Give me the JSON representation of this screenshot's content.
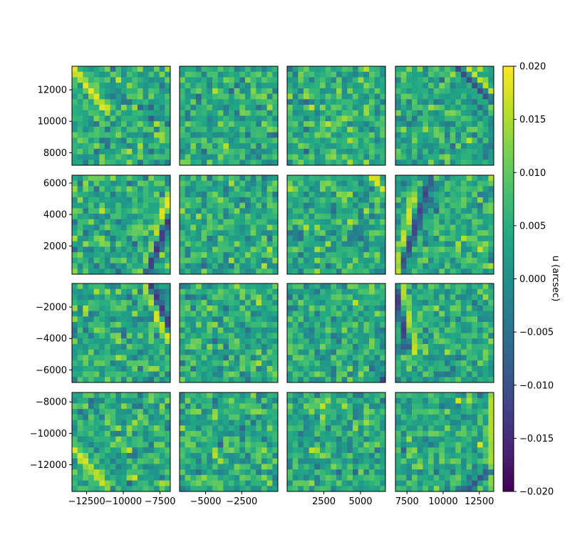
{
  "chart_data": {
    "type": "heatmap",
    "layout": "4x4 grid of panels sharing a colorbar",
    "colormap": "viridis",
    "value_range": [
      -0.02,
      0.02
    ],
    "colorbar": {
      "label": "u (arcsec)",
      "ticks": [
        "0.020",
        "0.015",
        "0.010",
        "0.005",
        "0.000",
        "−0.005",
        "−0.010",
        "−0.015",
        "−0.020"
      ],
      "tick_values": [
        0.02,
        0.015,
        0.01,
        0.005,
        0.0,
        -0.005,
        -0.01,
        -0.015,
        -0.02
      ]
    },
    "grid_resolution": 18,
    "column_xlim": [
      [
        -13500,
        -6800
      ],
      [
        -6800,
        0
      ],
      [
        0,
        6700
      ],
      [
        6700,
        13500
      ]
    ],
    "row_ylim": [
      [
        7200,
        13500
      ],
      [
        200,
        6500
      ],
      [
        -6800,
        -500
      ],
      [
        -13700,
        -7400
      ]
    ],
    "y_ticks": [
      {
        "labels": [
          "12000",
          "10000",
          "8000"
        ],
        "values": [
          12000,
          10000,
          8000
        ]
      },
      {
        "labels": [
          "6000",
          "4000",
          "2000"
        ],
        "values": [
          6000,
          4000,
          2000
        ]
      },
      {
        "labels": [
          "−2000",
          "−4000",
          "−6000"
        ],
        "values": [
          -2000,
          -4000,
          -6000
        ]
      },
      {
        "labels": [
          "−8000",
          "−10000",
          "−12000"
        ],
        "values": [
          -8000,
          -10000,
          -12000
        ]
      }
    ],
    "x_ticks": [
      {
        "labels": [
          "−12500",
          "−10000",
          "−7500"
        ],
        "values": [
          -12500,
          -10000,
          -7500
        ]
      },
      {
        "labels": [
          "−5000",
          "−2500"
        ],
        "values": [
          -5000,
          -2500
        ]
      },
      {
        "labels": [
          "2500",
          "5000"
        ],
        "values": [
          2500,
          5000
        ]
      },
      {
        "labels": [
          "7500",
          "10000",
          "12500"
        ],
        "values": [
          7500,
          10000,
          12500
        ]
      }
    ],
    "features": [
      {
        "row": 0,
        "col": 0,
        "shape": "diagonal_stripe",
        "from": [
          0.0,
          1.0
        ],
        "to": [
          0.35,
          0.55
        ],
        "value": 0.019
      },
      {
        "row": 0,
        "col": 3,
        "shape": "diagonal_stripe",
        "from": [
          0.7,
          1.0
        ],
        "to": [
          1.0,
          0.7
        ],
        "value": 0.02
      },
      {
        "row": 0,
        "col": 3,
        "shape": "diagonal_stripe",
        "from": [
          0.62,
          1.0
        ],
        "to": [
          0.95,
          0.68
        ],
        "value": -0.012
      },
      {
        "row": 0,
        "col": 2,
        "shape": "spot",
        "at": [
          0.44,
          0.42
        ],
        "value": 0.018
      },
      {
        "row": 1,
        "col": 0,
        "shape": "diagonal_stripe",
        "from": [
          0.72,
          0.0
        ],
        "to": [
          1.0,
          0.8
        ],
        "value": 0.019
      },
      {
        "row": 1,
        "col": 0,
        "shape": "diagonal_stripe",
        "from": [
          0.76,
          0.0
        ],
        "to": [
          0.98,
          0.55
        ],
        "value": -0.014
      },
      {
        "row": 1,
        "col": 2,
        "shape": "diagonal_stripe",
        "from": [
          0.85,
          1.0
        ],
        "to": [
          1.0,
          0.82
        ],
        "value": 0.018
      },
      {
        "row": 1,
        "col": 3,
        "shape": "diagonal_stripe",
        "from": [
          0.0,
          0.0
        ],
        "to": [
          0.18,
          0.75
        ],
        "value": 0.018
      },
      {
        "row": 1,
        "col": 3,
        "shape": "diagonal_stripe",
        "from": [
          0.08,
          0.1
        ],
        "to": [
          0.35,
          0.95
        ],
        "value": -0.012
      },
      {
        "row": 2,
        "col": 0,
        "shape": "diagonal_stripe",
        "from": [
          0.74,
          1.0
        ],
        "to": [
          0.97,
          0.45
        ],
        "value": 0.019
      },
      {
        "row": 2,
        "col": 0,
        "shape": "diagonal_stripe",
        "from": [
          0.8,
          1.0
        ],
        "to": [
          1.0,
          0.55
        ],
        "value": -0.014
      },
      {
        "row": 2,
        "col": 2,
        "shape": "spot",
        "at": [
          0.97,
          0.03
        ],
        "value": -0.012
      },
      {
        "row": 2,
        "col": 3,
        "shape": "diagonal_stripe",
        "from": [
          0.06,
          1.0
        ],
        "to": [
          0.2,
          0.3
        ],
        "value": 0.017
      },
      {
        "row": 2,
        "col": 3,
        "shape": "diagonal_stripe",
        "from": [
          0.0,
          0.95
        ],
        "to": [
          0.12,
          0.35
        ],
        "value": -0.013
      },
      {
        "row": 3,
        "col": 0,
        "shape": "diagonal_stripe",
        "from": [
          0.0,
          0.45
        ],
        "to": [
          0.35,
          0.05
        ],
        "value": 0.018
      },
      {
        "row": 3,
        "col": 3,
        "shape": "diagonal_stripe",
        "from": [
          0.98,
          0.95
        ],
        "to": [
          0.99,
          0.05
        ],
        "value": 0.016
      },
      {
        "row": 3,
        "col": 3,
        "shape": "diagonal_stripe",
        "from": [
          0.7,
          0.0
        ],
        "to": [
          0.95,
          0.2
        ],
        "value": -0.01
      }
    ]
  }
}
